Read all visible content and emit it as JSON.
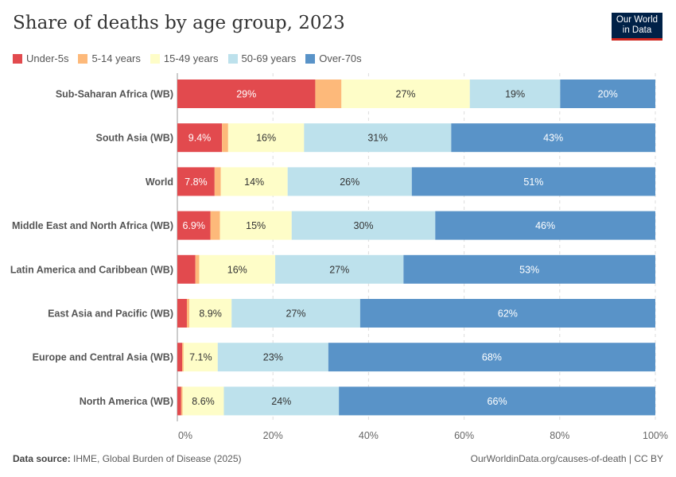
{
  "chart_data": {
    "type": "bar",
    "orientation": "horizontal",
    "stacked": true,
    "title": "Share of deaths by age group, 2023",
    "categories": [
      "Sub-Saharan Africa (WB)",
      "South Asia (WB)",
      "World",
      "Middle East and North Africa (WB)",
      "Latin America and Caribbean (WB)",
      "East Asia and Pacific (WB)",
      "Europe and Central Asia (WB)",
      "North America (WB)"
    ],
    "series": [
      {
        "name": "Under-5s",
        "color": "#e24a4e",
        "values": [
          29,
          9.4,
          7.8,
          6.9,
          3.8,
          2,
          1,
          0.8
        ],
        "labels": [
          "29%",
          "9.4%",
          "7.8%",
          "6.9%",
          "",
          "",
          "",
          ""
        ]
      },
      {
        "name": "5-14 years",
        "color": "#fdb97a",
        "values": [
          5.5,
          1.3,
          1.3,
          2,
          0.8,
          0.5,
          0.3,
          0.3
        ],
        "labels": [
          "",
          "",
          "",
          "",
          "",
          "",
          "",
          ""
        ]
      },
      {
        "name": "15-49 years",
        "color": "#fefdc8",
        "values": [
          27,
          16,
          14,
          15,
          16,
          8.9,
          7.1,
          8.6
        ],
        "labels": [
          "27%",
          "16%",
          "14%",
          "15%",
          "16%",
          "8.9%",
          "7.1%",
          "8.6%"
        ]
      },
      {
        "name": "50-69 years",
        "color": "#bde1ec",
        "values": [
          19,
          31,
          26,
          30,
          27,
          27,
          23,
          24
        ],
        "labels": [
          "19%",
          "31%",
          "26%",
          "30%",
          "27%",
          "27%",
          "23%",
          "24%"
        ]
      },
      {
        "name": "Over-70s",
        "color": "#5993c8",
        "values": [
          20,
          43,
          51,
          46,
          53,
          62,
          68,
          66
        ],
        "labels": [
          "20%",
          "43%",
          "51%",
          "46%",
          "53%",
          "62%",
          "68%",
          "66%"
        ]
      }
    ],
    "xlim": [
      0,
      100
    ],
    "xticks": [
      "0%",
      "20%",
      "40%",
      "60%",
      "80%",
      "100%"
    ],
    "grid": true,
    "legend_placement": "top-left"
  },
  "logo": {
    "line1": "Our World",
    "line2": "in Data"
  },
  "footer": {
    "source_label": "Data source:",
    "source": "IHME, Global Burden of Disease (2025)",
    "url": "OurWorldinData.org/causes-of-death | CC BY"
  }
}
